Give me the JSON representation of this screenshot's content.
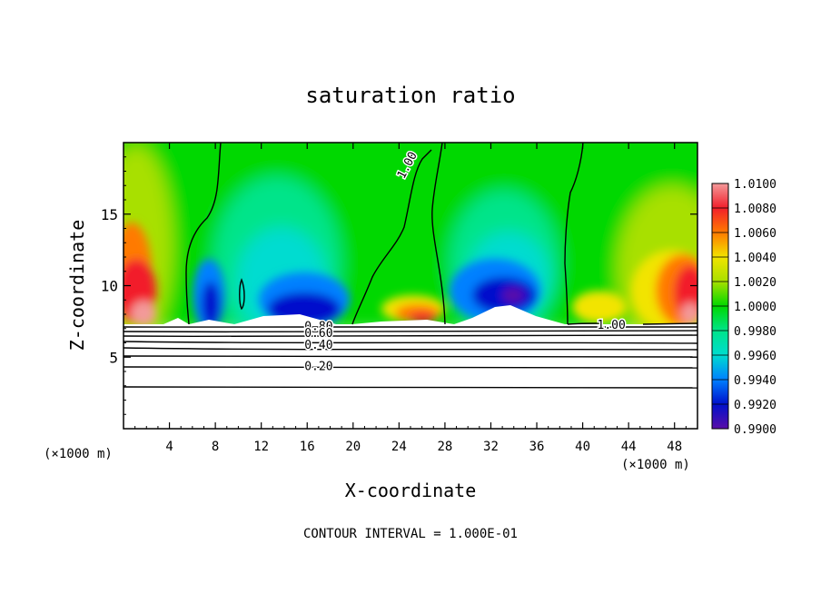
{
  "chart_data": {
    "type": "heatmap",
    "title": "saturation ratio",
    "xlabel": "X-coordinate",
    "ylabel": "Z-coordinate",
    "x_unit_left": "(×1000 m)",
    "x_unit_right": "(×1000 m)",
    "xlim": [
      0,
      50
    ],
    "ylim": [
      0,
      20
    ],
    "xticks": [
      4,
      8,
      12,
      16,
      20,
      24,
      28,
      32,
      36,
      40,
      44,
      48
    ],
    "yticks": [
      5,
      10,
      15
    ],
    "footer": "CONTOUR INTERVAL = 1.000E-01",
    "colorbar": {
      "min": 0.99,
      "max": 1.01,
      "labels": [
        "1.0100",
        "1.0080",
        "1.0060",
        "1.0040",
        "1.0020",
        "1.0000",
        "0.9980",
        "0.9960",
        "0.9940",
        "0.9920",
        "0.9900"
      ],
      "colors": [
        "#f39a9a",
        "#f21f2b",
        "#ff7a00",
        "#f2e400",
        "#a8e000",
        "#00d800",
        "#00e48a",
        "#00dcd0",
        "#0080ff",
        "#0010cc",
        "#5a0ea8"
      ]
    },
    "contour_labels": [
      {
        "text": "1.00",
        "x": 25.0,
        "y": 18.3
      },
      {
        "text": "1.00",
        "x": 42.5,
        "y": 7.0
      },
      {
        "text": "0.80",
        "x": 17.0,
        "y": 6.9
      },
      {
        "text": "0.60",
        "x": 17.0,
        "y": 6.4
      },
      {
        "text": "0.40",
        "x": 17.0,
        "y": 5.6
      },
      {
        "text": "0.20",
        "x": 17.0,
        "y": 4.1
      }
    ]
  }
}
